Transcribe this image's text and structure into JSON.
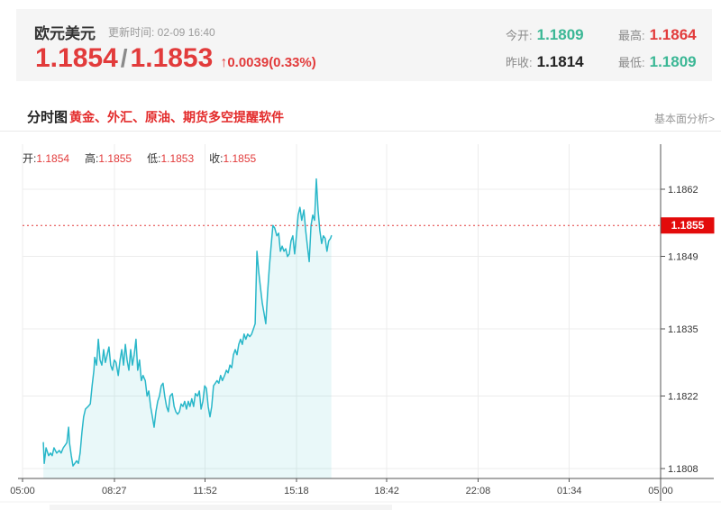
{
  "quote": {
    "title": "欧元美元",
    "update_time": "更新时间: 02-09 16:40",
    "bid": "1.1854",
    "separator": "/",
    "ask": "1.1853",
    "up_arrow": "↑",
    "change": "0.0039(0.33%)",
    "stats": [
      {
        "label": "今开:",
        "value": "1.1809"
      },
      {
        "label": "最高:",
        "value": "1.1864"
      },
      {
        "label": "昨收:",
        "value": "1.1814"
      },
      {
        "label": "最低:",
        "value": "1.1809"
      }
    ]
  },
  "nav": {
    "tab": "分时图",
    "promo": "黄金、外汇、原油、期货多空提醒软件",
    "link": "基本面分析>"
  },
  "ohlc": [
    {
      "label": "开:",
      "value": "1.1854"
    },
    {
      "label": "高:",
      "value": "1.1855"
    },
    {
      "label": "低:",
      "value": "1.1853"
    },
    {
      "label": "收:",
      "value": "1.1855"
    }
  ],
  "colors": {
    "red": "#e23b3b",
    "green": "#3bb795",
    "dark": "#222222",
    "line": "#29b7c9",
    "fill": "rgba(41,183,201,0.10)",
    "tag_bg": "#e30b0b",
    "tag_text": "#ffffff",
    "grid": "#ececec",
    "axis": "#555555",
    "tick_text": "#333333"
  },
  "chart_data": {
    "type": "area",
    "title": "欧元美元分时图",
    "open": 1.1854,
    "high": 1.1855,
    "low": 1.1853,
    "close": 1.1855,
    "current_price": 1.1855,
    "x_ticks": [
      "05:00",
      "08:27",
      "11:52",
      "15:18",
      "18:42",
      "22:08",
      "01:34",
      "05:00"
    ],
    "x_tick_minutes": [
      0,
      207,
      412,
      618,
      822,
      1028,
      1234,
      1440
    ],
    "x_total_minutes": 1440,
    "y_ticks": [
      1.1808,
      1.1822,
      1.1835,
      1.1849,
      1.1862
    ],
    "ylim": [
      1.1806,
      1.1871
    ],
    "grid": true,
    "legend": false,
    "points": [
      [
        47,
        1.1813
      ],
      [
        49,
        1.1809
      ],
      [
        53,
        1.1812
      ],
      [
        59,
        1.18105
      ],
      [
        63,
        1.1811
      ],
      [
        67,
        1.18105
      ],
      [
        71,
        1.1812
      ],
      [
        77,
        1.1811
      ],
      [
        83,
        1.18115
      ],
      [
        87,
        1.1811
      ],
      [
        92,
        1.1812
      ],
      [
        96,
        1.18125
      ],
      [
        100,
        1.1813
      ],
      [
        104,
        1.1816
      ],
      [
        106,
        1.1813
      ],
      [
        110,
        1.18105
      ],
      [
        114,
        1.18085
      ],
      [
        118,
        1.1809
      ],
      [
        122,
        1.18095
      ],
      [
        126,
        1.1809
      ],
      [
        130,
        1.1811
      ],
      [
        134,
        1.1815
      ],
      [
        138,
        1.1818
      ],
      [
        142,
        1.18195
      ],
      [
        148,
        1.182
      ],
      [
        153,
        1.18205
      ],
      [
        157,
        1.1824
      ],
      [
        161,
        1.1827
      ],
      [
        163,
        1.18295
      ],
      [
        167,
        1.1828
      ],
      [
        171,
        1.1833
      ],
      [
        175,
        1.1829
      ],
      [
        179,
        1.1828
      ],
      [
        183,
        1.1831
      ],
      [
        187,
        1.18285
      ],
      [
        191,
        1.183
      ],
      [
        195,
        1.18315
      ],
      [
        199,
        1.1828
      ],
      [
        203,
        1.1827
      ],
      [
        207,
        1.1829
      ],
      [
        211,
        1.18285
      ],
      [
        216,
        1.1826
      ],
      [
        220,
        1.1829
      ],
      [
        224,
        1.1831
      ],
      [
        228,
        1.1828
      ],
      [
        232,
        1.1832
      ],
      [
        236,
        1.1829
      ],
      [
        240,
        1.1827
      ],
      [
        244,
        1.1831
      ],
      [
        248,
        1.1828
      ],
      [
        252,
        1.183
      ],
      [
        256,
        1.1833
      ],
      [
        260,
        1.1827
      ],
      [
        264,
        1.1829
      ],
      [
        268,
        1.1825
      ],
      [
        272,
        1.1826
      ],
      [
        277,
        1.1825
      ],
      [
        281,
        1.1822
      ],
      [
        285,
        1.1823
      ],
      [
        289,
        1.182
      ],
      [
        293,
        1.1818
      ],
      [
        297,
        1.1816
      ],
      [
        301,
        1.1819
      ],
      [
        305,
        1.1821
      ],
      [
        309,
        1.1822
      ],
      [
        313,
        1.1824
      ],
      [
        317,
        1.18245
      ],
      [
        321,
        1.1822
      ],
      [
        325,
        1.182
      ],
      [
        329,
        1.1819
      ],
      [
        333,
        1.1822
      ],
      [
        338,
        1.18225
      ],
      [
        342,
        1.182
      ],
      [
        346,
        1.1819
      ],
      [
        350,
        1.18185
      ],
      [
        354,
        1.1819
      ],
      [
        358,
        1.18205
      ],
      [
        362,
        1.182
      ],
      [
        366,
        1.1821
      ],
      [
        370,
        1.18195
      ],
      [
        374,
        1.1821
      ],
      [
        378,
        1.182
      ],
      [
        382,
        1.18215
      ],
      [
        386,
        1.182
      ],
      [
        390,
        1.18225
      ],
      [
        395,
        1.1822
      ],
      [
        399,
        1.1823
      ],
      [
        403,
        1.18195
      ],
      [
        407,
        1.1821
      ],
      [
        411,
        1.1824
      ],
      [
        415,
        1.18235
      ],
      [
        419,
        1.182
      ],
      [
        423,
        1.1818
      ],
      [
        427,
        1.182
      ],
      [
        431,
        1.1824
      ],
      [
        435,
        1.18245
      ],
      [
        439,
        1.1825
      ],
      [
        443,
        1.18245
      ],
      [
        447,
        1.1826
      ],
      [
        451,
        1.1825
      ],
      [
        456,
        1.1826
      ],
      [
        460,
        1.1827
      ],
      [
        464,
        1.18265
      ],
      [
        468,
        1.1828
      ],
      [
        472,
        1.18275
      ],
      [
        476,
        1.183
      ],
      [
        480,
        1.1831
      ],
      [
        484,
        1.183
      ],
      [
        488,
        1.1832
      ],
      [
        492,
        1.1833
      ],
      [
        496,
        1.1832
      ],
      [
        500,
        1.1834
      ],
      [
        504,
        1.1833
      ],
      [
        508,
        1.1834
      ],
      [
        513,
        1.18335
      ],
      [
        517,
        1.1834
      ],
      [
        521,
        1.1835
      ],
      [
        525,
        1.1836
      ],
      [
        529,
        1.185
      ],
      [
        533,
        1.1846
      ],
      [
        537,
        1.1843
      ],
      [
        541,
        1.184
      ],
      [
        545,
        1.1838
      ],
      [
        549,
        1.1836
      ],
      [
        553,
        1.1842
      ],
      [
        557,
        1.1847
      ],
      [
        561,
        1.1851
      ],
      [
        565,
        1.1855
      ],
      [
        569,
        1.18545
      ],
      [
        574,
        1.1853
      ],
      [
        578,
        1.18535
      ],
      [
        582,
        1.185
      ],
      [
        586,
        1.1851
      ],
      [
        590,
        1.185
      ],
      [
        594,
        1.18505
      ],
      [
        598,
        1.1849
      ],
      [
        602,
        1.18495
      ],
      [
        606,
        1.1852
      ],
      [
        610,
        1.1853
      ],
      [
        614,
        1.18495
      ],
      [
        618,
        1.1853
      ],
      [
        622,
        1.1857
      ],
      [
        626,
        1.18585
      ],
      [
        630,
        1.1856
      ],
      [
        635,
        1.1858
      ],
      [
        639,
        1.1854
      ],
      [
        643,
        1.1851
      ],
      [
        647,
        1.1848
      ],
      [
        651,
        1.1855
      ],
      [
        655,
        1.1857
      ],
      [
        659,
        1.1856
      ],
      [
        663,
        1.1864
      ],
      [
        667,
        1.1858
      ],
      [
        671,
        1.1854
      ],
      [
        675,
        1.18515
      ],
      [
        679,
        1.1853
      ],
      [
        683,
        1.18525
      ],
      [
        687,
        1.185
      ],
      [
        691,
        1.1852
      ],
      [
        695,
        1.18525
      ],
      [
        697,
        1.1853
      ]
    ]
  }
}
